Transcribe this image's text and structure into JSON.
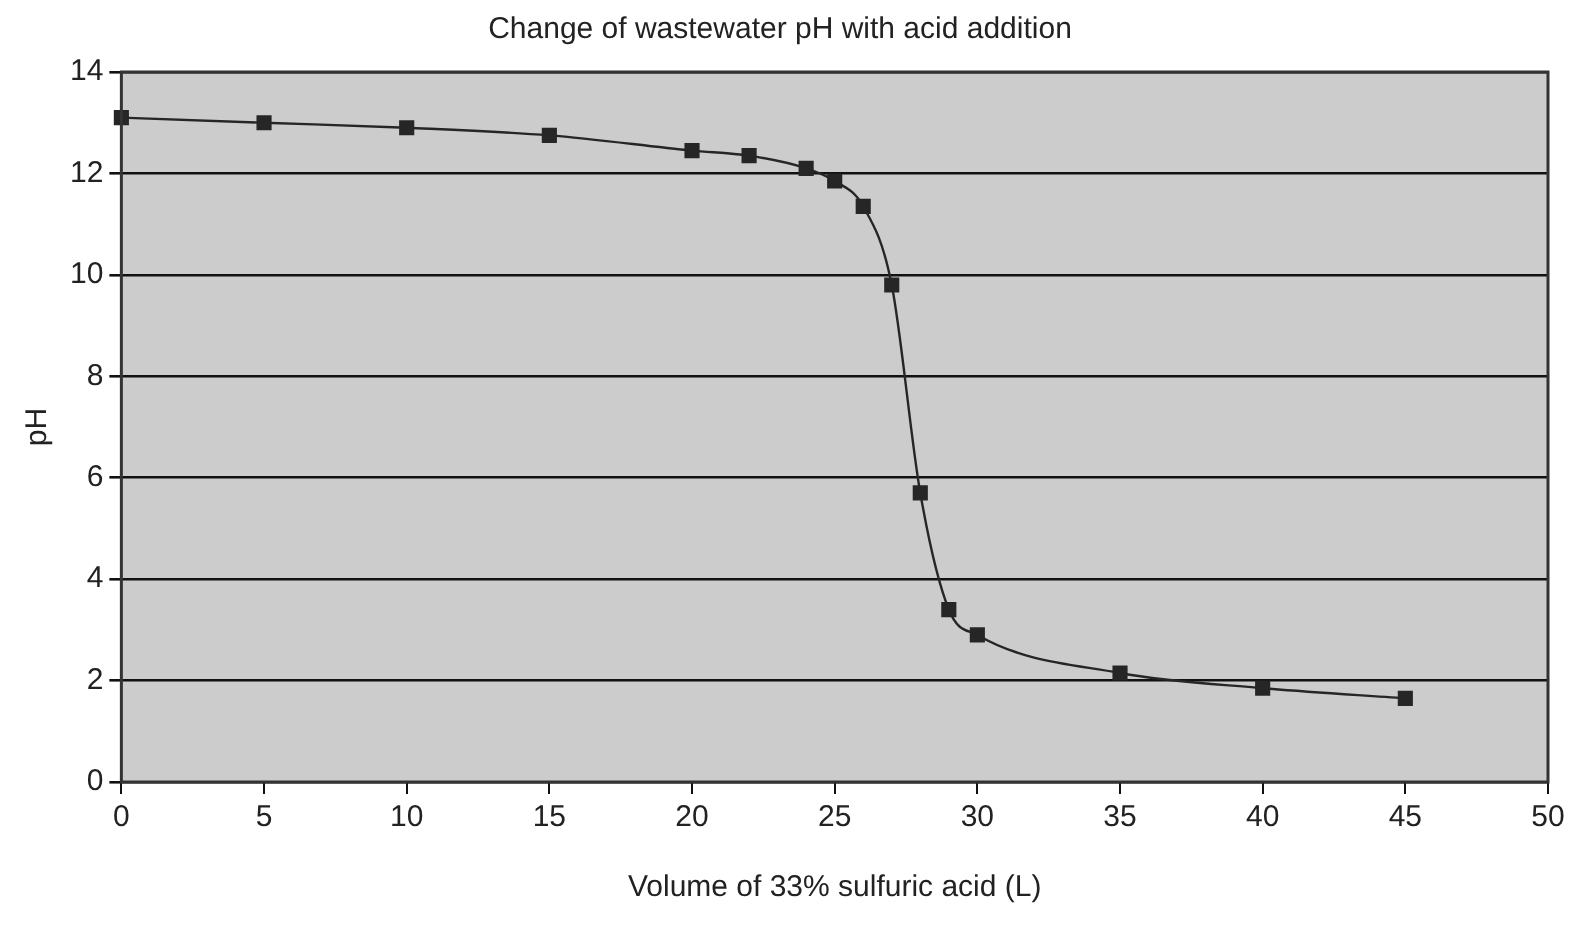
{
  "chart_data": {
    "type": "line",
    "title": "Change of wastewater pH with acid addition",
    "xlabel": "Volume of 33% sulfuric acid (L)",
    "ylabel": "pH",
    "x": [
      0,
      5,
      10,
      15,
      20,
      22,
      24,
      25,
      26,
      27,
      28,
      29,
      30,
      35,
      40,
      45
    ],
    "series": [
      {
        "color": "#262626",
        "values": [
          13.1,
          13.0,
          12.9,
          12.75,
          12.45,
          12.35,
          12.1,
          11.85,
          11.35,
          9.8,
          5.7,
          3.4,
          2.9,
          2.15,
          1.85,
          1.65
        ]
      }
    ],
    "xlim": [
      0,
      50
    ],
    "xticks": [
      0,
      5,
      10,
      15,
      20,
      25,
      30,
      35,
      40,
      45,
      50
    ],
    "ylim": [
      0,
      14
    ],
    "yticks": [
      0,
      2,
      4,
      6,
      8,
      10,
      12,
      14
    ],
    "grid": "y",
    "legend": false,
    "marker": "square",
    "line_style": "solid"
  }
}
